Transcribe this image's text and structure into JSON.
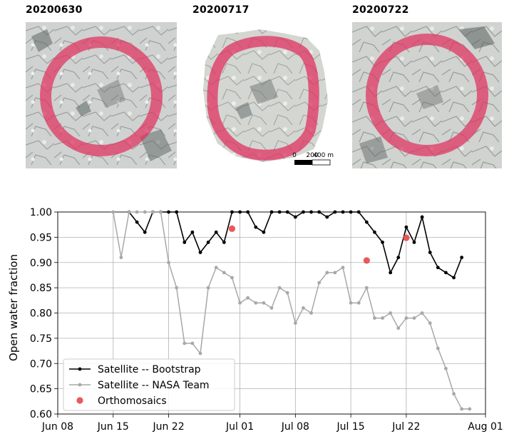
{
  "panels": [
    {
      "date": "20200630"
    },
    {
      "date": "20200717"
    },
    {
      "date": "20200722"
    }
  ],
  "scale_bar": {
    "ticks": [
      "0",
      "200",
      "400 m"
    ]
  },
  "colors": {
    "ring": "#e0315f",
    "ice_light": "#d6d8d6",
    "ice_dark": "#8e9391",
    "bootstrap": "#000000",
    "nasa_team": "#a8a8a8",
    "orthomosaics": "#e8474a"
  },
  "chart_data": {
    "type": "line",
    "title": "",
    "xlabel": "",
    "ylabel": "Open water fraction",
    "xlim": [
      "2020-06-08",
      "2020-08-01"
    ],
    "ylim": [
      0.6,
      1.0
    ],
    "x_ticks": [
      "Jun 08",
      "Jun 15",
      "Jun 22",
      "Jul 01",
      "Jul 08",
      "Jul 15",
      "Jul 22",
      "Aug 01"
    ],
    "x_tick_dates": [
      "2020-06-08",
      "2020-06-15",
      "2020-06-22",
      "2020-07-01",
      "2020-07-08",
      "2020-07-15",
      "2020-07-22",
      "2020-08-01"
    ],
    "y_ticks": [
      "0.60",
      "0.65",
      "0.70",
      "0.75",
      "0.80",
      "0.85",
      "0.90",
      "0.95",
      "1.00"
    ],
    "grid": true,
    "legend_position": "bottom-left",
    "series": [
      {
        "name": "Satellite -- Bootstrap",
        "style": "line-dot",
        "x": [
          "2020-06-17",
          "2020-06-18",
          "2020-06-19",
          "2020-06-20",
          "2020-06-21",
          "2020-06-22",
          "2020-06-23",
          "2020-06-24",
          "2020-06-25",
          "2020-06-26",
          "2020-06-27",
          "2020-06-28",
          "2020-06-29",
          "2020-06-30",
          "2020-07-01",
          "2020-07-02",
          "2020-07-03",
          "2020-07-04",
          "2020-07-05",
          "2020-07-06",
          "2020-07-07",
          "2020-07-08",
          "2020-07-09",
          "2020-07-10",
          "2020-07-11",
          "2020-07-12",
          "2020-07-13",
          "2020-07-14",
          "2020-07-15",
          "2020-07-16",
          "2020-07-17",
          "2020-07-18",
          "2020-07-19",
          "2020-07-20",
          "2020-07-21",
          "2020-07-22",
          "2020-07-23",
          "2020-07-24",
          "2020-07-25",
          "2020-07-26",
          "2020-07-27",
          "2020-07-28",
          "2020-07-29",
          "2020-07-30",
          "2020-07-31"
        ],
        "values": [
          1.0,
          0.98,
          0.96,
          1.0,
          1.0,
          1.0,
          1.0,
          0.94,
          0.96,
          0.92,
          0.94,
          0.96,
          0.94,
          1.0,
          1.0,
          1.0,
          0.97,
          0.96,
          1.0,
          1.0,
          1.0,
          0.99,
          1.0,
          1.0,
          1.0,
          0.99,
          1.0,
          1.0,
          1.0,
          1.0,
          0.98,
          0.96,
          0.94,
          0.88,
          0.91,
          0.97,
          0.94,
          0.99,
          0.92,
          0.89,
          0.88,
          0.87,
          0.91,
          null,
          null
        ]
      },
      {
        "name": "Satellite -- NASA Team",
        "style": "line-dot",
        "x": [
          "2020-06-15",
          "2020-06-16",
          "2020-06-17",
          "2020-06-18",
          "2020-06-19",
          "2020-06-20",
          "2020-06-21",
          "2020-06-22",
          "2020-06-23",
          "2020-06-24",
          "2020-06-25",
          "2020-06-26",
          "2020-06-27",
          "2020-06-28",
          "2020-06-29",
          "2020-06-30",
          "2020-07-01",
          "2020-07-02",
          "2020-07-03",
          "2020-07-04",
          "2020-07-05",
          "2020-07-06",
          "2020-07-07",
          "2020-07-08",
          "2020-07-09",
          "2020-07-10",
          "2020-07-11",
          "2020-07-12",
          "2020-07-13",
          "2020-07-14",
          "2020-07-15",
          "2020-07-16",
          "2020-07-17",
          "2020-07-18",
          "2020-07-19",
          "2020-07-20",
          "2020-07-21",
          "2020-07-22",
          "2020-07-23",
          "2020-07-24",
          "2020-07-25",
          "2020-07-26",
          "2020-07-27",
          "2020-07-28",
          "2020-07-29",
          "2020-07-30",
          "2020-07-31"
        ],
        "values": [
          1.0,
          0.91,
          1.0,
          1.0,
          1.0,
          1.0,
          1.0,
          0.9,
          0.85,
          0.74,
          0.74,
          0.72,
          0.85,
          0.89,
          0.88,
          0.87,
          0.82,
          0.83,
          0.82,
          0.82,
          0.81,
          0.85,
          0.84,
          0.78,
          0.81,
          0.8,
          0.86,
          0.88,
          0.88,
          0.89,
          0.82,
          0.82,
          0.85,
          0.79,
          0.79,
          0.8,
          0.77,
          0.79,
          0.79,
          0.8,
          0.78,
          0.73,
          0.69,
          0.64,
          0.61,
          0.61,
          null
        ]
      },
      {
        "name": "Orthomosaics",
        "style": "scatter",
        "x": [
          "2020-06-30",
          "2020-07-17",
          "2020-07-22"
        ],
        "values": [
          0.967,
          0.904,
          0.949
        ]
      }
    ]
  }
}
